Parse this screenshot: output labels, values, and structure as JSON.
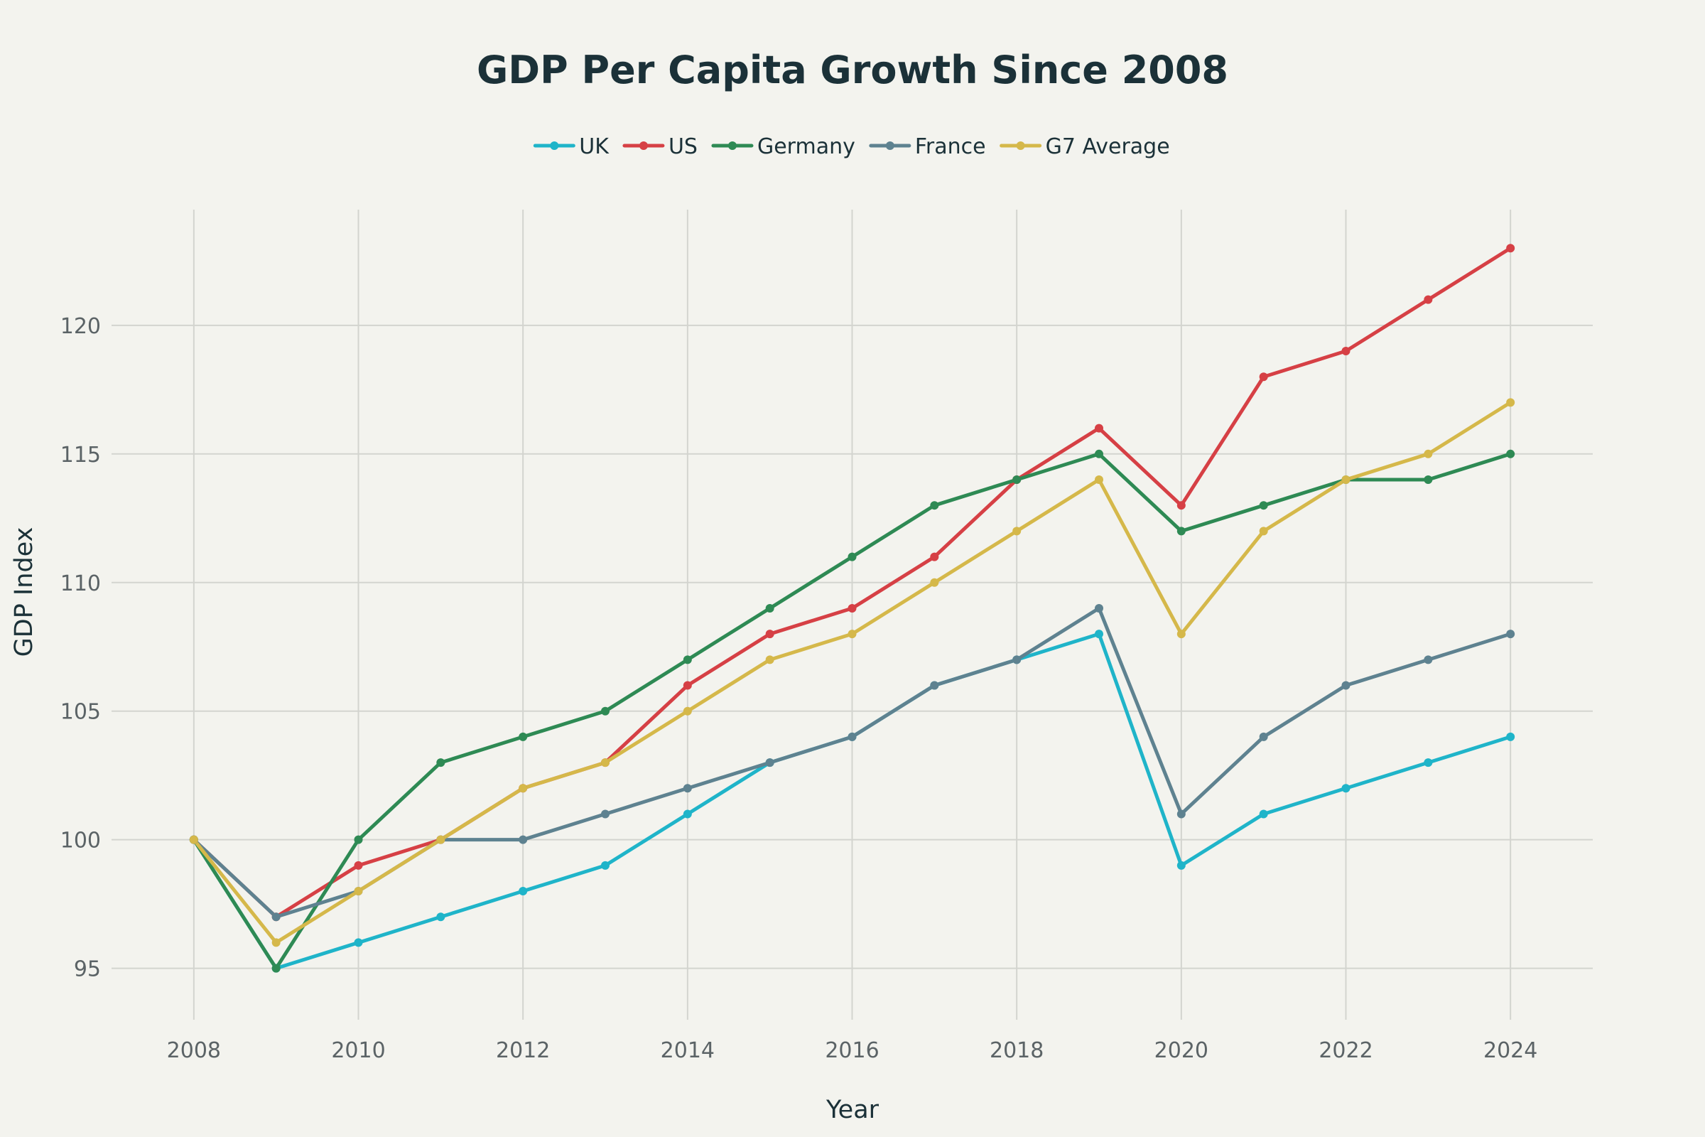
{
  "chart_data": {
    "type": "line",
    "title": "GDP Per Capita Growth Since 2008",
    "xlabel": "Year",
    "ylabel": "GDP Index",
    "x": [
      2008,
      2009,
      2010,
      2011,
      2012,
      2013,
      2014,
      2015,
      2016,
      2017,
      2018,
      2019,
      2020,
      2021,
      2022,
      2023,
      2024
    ],
    "xlim": [
      2007,
      2025
    ],
    "ylim": [
      93,
      124.5
    ],
    "xticks": [
      2008,
      2010,
      2012,
      2014,
      2016,
      2018,
      2020,
      2022,
      2024
    ],
    "yticks": [
      95,
      100,
      105,
      110,
      115,
      120
    ],
    "grid": true,
    "legend_position": "top-center",
    "series": [
      {
        "name": "UK",
        "color": "#1fb4c9",
        "values": [
          100,
          95,
          96,
          97,
          98,
          99,
          101,
          103,
          104,
          106,
          107,
          108,
          99,
          101,
          102,
          103,
          104
        ]
      },
      {
        "name": "US",
        "color": "#d64045",
        "values": [
          100,
          97,
          99,
          100,
          102,
          103,
          106,
          108,
          109,
          111,
          114,
          116,
          113,
          118,
          119,
          121,
          123
        ]
      },
      {
        "name": "Germany",
        "color": "#2e8a54",
        "values": [
          100,
          95,
          100,
          103,
          104,
          105,
          107,
          109,
          111,
          113,
          114,
          115,
          112,
          113,
          114,
          114,
          115
        ]
      },
      {
        "name": "France",
        "color": "#5e8290",
        "values": [
          100,
          97,
          98,
          100,
          100,
          101,
          102,
          103,
          104,
          106,
          107,
          109,
          101,
          104,
          106,
          107,
          108
        ]
      },
      {
        "name": "G7 Average",
        "color": "#d5b84a",
        "values": [
          100,
          96,
          98,
          100,
          102,
          103,
          105,
          107,
          108,
          110,
          112,
          114,
          108,
          112,
          114,
          115,
          117
        ]
      }
    ]
  }
}
